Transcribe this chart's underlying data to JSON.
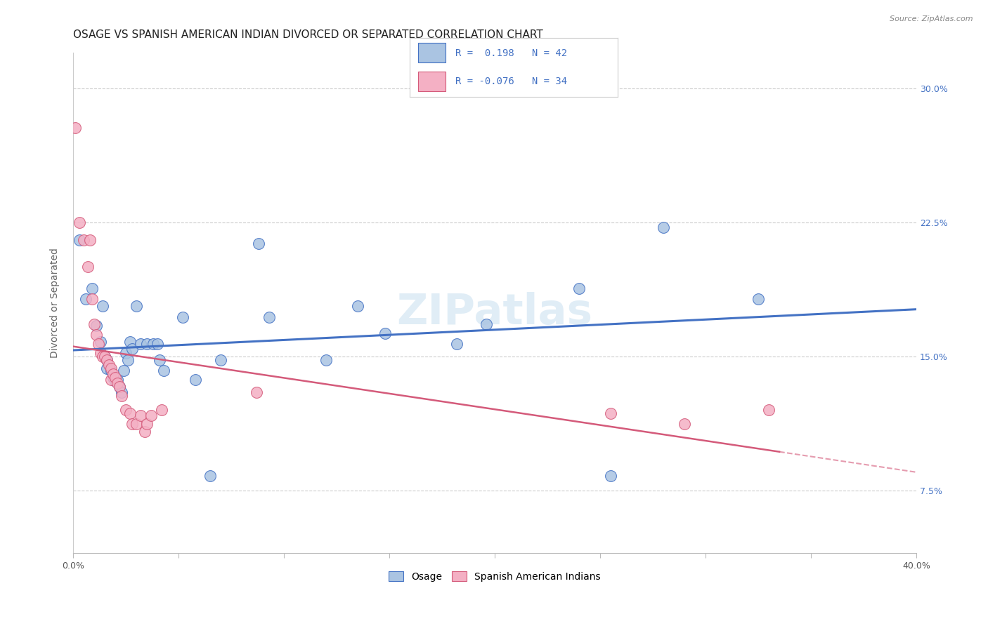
{
  "title": "OSAGE VS SPANISH AMERICAN INDIAN DIVORCED OR SEPARATED CORRELATION CHART",
  "source": "Source: ZipAtlas.com",
  "ylabel": "Divorced or Separated",
  "xlim": [
    0.0,
    0.4
  ],
  "ylim": [
    0.04,
    0.32
  ],
  "yticks": [
    0.075,
    0.15,
    0.225,
    0.3
  ],
  "ytick_labels": [
    "7.5%",
    "15.0%",
    "22.5%",
    "30.0%"
  ],
  "watermark": "ZIPatlas",
  "osage_color": "#aac4e2",
  "osage_line_color": "#4472c4",
  "spanish_color": "#f4b0c4",
  "spanish_line_color": "#d45a7a",
  "background_color": "#ffffff",
  "osage_x": [
    0.003,
    0.006,
    0.009,
    0.011,
    0.013,
    0.014,
    0.015,
    0.016,
    0.016,
    0.018,
    0.019,
    0.02,
    0.021,
    0.022,
    0.023,
    0.024,
    0.025,
    0.026,
    0.027,
    0.028,
    0.03,
    0.032,
    0.035,
    0.038,
    0.04,
    0.041,
    0.043,
    0.052,
    0.058,
    0.065,
    0.07,
    0.088,
    0.093,
    0.12,
    0.135,
    0.148,
    0.182,
    0.196,
    0.24,
    0.255,
    0.28,
    0.325
  ],
  "osage_y": [
    0.215,
    0.182,
    0.188,
    0.167,
    0.158,
    0.178,
    0.15,
    0.148,
    0.143,
    0.142,
    0.138,
    0.136,
    0.137,
    0.133,
    0.13,
    0.142,
    0.152,
    0.148,
    0.158,
    0.154,
    0.178,
    0.157,
    0.157,
    0.157,
    0.157,
    0.148,
    0.142,
    0.172,
    0.137,
    0.083,
    0.148,
    0.213,
    0.172,
    0.148,
    0.178,
    0.163,
    0.157,
    0.168,
    0.188,
    0.083,
    0.222,
    0.182
  ],
  "spanish_x": [
    0.001,
    0.003,
    0.005,
    0.007,
    0.008,
    0.009,
    0.01,
    0.011,
    0.012,
    0.013,
    0.014,
    0.015,
    0.016,
    0.017,
    0.018,
    0.018,
    0.019,
    0.02,
    0.021,
    0.022,
    0.023,
    0.025,
    0.027,
    0.028,
    0.03,
    0.032,
    0.034,
    0.035,
    0.037,
    0.042,
    0.087,
    0.255,
    0.29,
    0.33
  ],
  "spanish_y": [
    0.278,
    0.225,
    0.215,
    0.2,
    0.215,
    0.182,
    0.168,
    0.162,
    0.157,
    0.152,
    0.15,
    0.15,
    0.148,
    0.145,
    0.143,
    0.137,
    0.14,
    0.138,
    0.135,
    0.133,
    0.128,
    0.12,
    0.118,
    0.112,
    0.112,
    0.117,
    0.108,
    0.112,
    0.117,
    0.12,
    0.13,
    0.118,
    0.112,
    0.12
  ],
  "title_fontsize": 11,
  "axis_fontsize": 10,
  "tick_fontsize": 9
}
